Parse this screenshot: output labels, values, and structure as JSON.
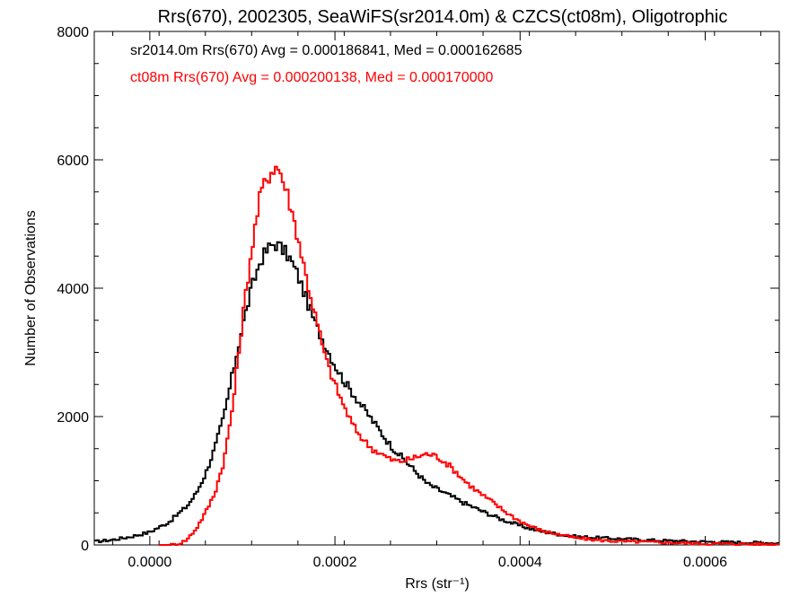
{
  "chart_data": {
    "type": "line",
    "title": "Rrs(670), 2002305, SeaWiFS(sr2014.0m) & CZCS(ct08m), Oligotrophic",
    "xlabel": "Rrs (str⁻¹)",
    "ylabel": "Number of Observations",
    "xlim": [
      -6e-05,
      0.00068
    ],
    "ylim": [
      0,
      8000
    ],
    "xticks": [
      0.0,
      0.0002,
      0.0004,
      0.0006
    ],
    "xtick_labels": [
      "0.0000",
      "0.0002",
      "0.0004",
      "0.0006"
    ],
    "yticks": [
      0,
      2000,
      4000,
      6000,
      8000
    ],
    "ytick_labels": [
      "0",
      "2000",
      "4000",
      "6000",
      "8000"
    ],
    "grid": false,
    "annotations": [
      {
        "text": "sr2014.0m Rrs(670) Avg = 0.000186841, Med = 0.000162685",
        "color": "#000000"
      },
      {
        "text": "ct08m Rrs(670) Avg = 0.000200138, Med = 0.000170000",
        "color": "#ff0000"
      }
    ],
    "series": [
      {
        "color": "#000000",
        "style": "step",
        "x": [
          -6e-05,
          -4e-05,
          -2e-05,
          0.0,
          2e-05,
          4e-05,
          5e-05,
          6e-05,
          7e-05,
          8e-05,
          9e-05,
          0.0001,
          0.00011,
          0.00012,
          0.00013,
          0.000135,
          0.00014,
          0.00015,
          0.00016,
          0.00017,
          0.00018,
          0.00019,
          0.0002,
          0.00021,
          0.00022,
          0.00023,
          0.00024,
          0.00025,
          0.00026,
          0.00027,
          0.00028,
          0.00029,
          0.0003,
          0.00032,
          0.00034,
          0.00036,
          0.00038,
          0.0004,
          0.00042,
          0.00044,
          0.00046,
          0.0005,
          0.00055,
          0.0006,
          0.00068
        ],
        "values": [
          50,
          80,
          130,
          200,
          350,
          600,
          800,
          1100,
          1500,
          2000,
          2700,
          3400,
          4000,
          4450,
          4650,
          4700,
          4650,
          4500,
          4200,
          3800,
          3400,
          3100,
          2800,
          2550,
          2350,
          2150,
          1950,
          1750,
          1550,
          1400,
          1250,
          1100,
          950,
          800,
          650,
          520,
          400,
          300,
          220,
          170,
          130,
          100,
          70,
          50,
          30
        ]
      },
      {
        "color": "#ff0000",
        "style": "step",
        "x": [
          1e-05,
          2e-05,
          3e-05,
          4e-05,
          5e-05,
          6e-05,
          7e-05,
          8e-05,
          9e-05,
          0.0001,
          0.00011,
          0.00012,
          0.00013,
          0.000135,
          0.00014,
          0.00015,
          0.00016,
          0.00017,
          0.00018,
          0.00019,
          0.0002,
          0.00021,
          0.00022,
          0.00023,
          0.00024,
          0.00025,
          0.00026,
          0.00027,
          0.00028,
          0.00029,
          0.0003,
          0.00031,
          0.00032,
          0.00033,
          0.00034,
          0.00035,
          0.00036,
          0.00037,
          0.00038,
          0.00039,
          0.0004,
          0.00041,
          0.00042,
          0.00043,
          0.00044,
          0.00045,
          0.00046,
          0.00048,
          0.0005,
          0.00055,
          0.0006,
          0.00068
        ],
        "values": [
          0,
          0,
          10,
          80,
          250,
          500,
          800,
          1300,
          2200,
          3500,
          4600,
          5500,
          5800,
          5900,
          5850,
          5400,
          4800,
          4100,
          3500,
          2900,
          2500,
          2150,
          1850,
          1650,
          1500,
          1420,
          1330,
          1300,
          1330,
          1380,
          1420,
          1380,
          1280,
          1150,
          1000,
          880,
          770,
          670,
          560,
          460,
          370,
          300,
          240,
          200,
          170,
          140,
          110,
          80,
          60,
          40,
          20,
          10
        ]
      }
    ]
  }
}
